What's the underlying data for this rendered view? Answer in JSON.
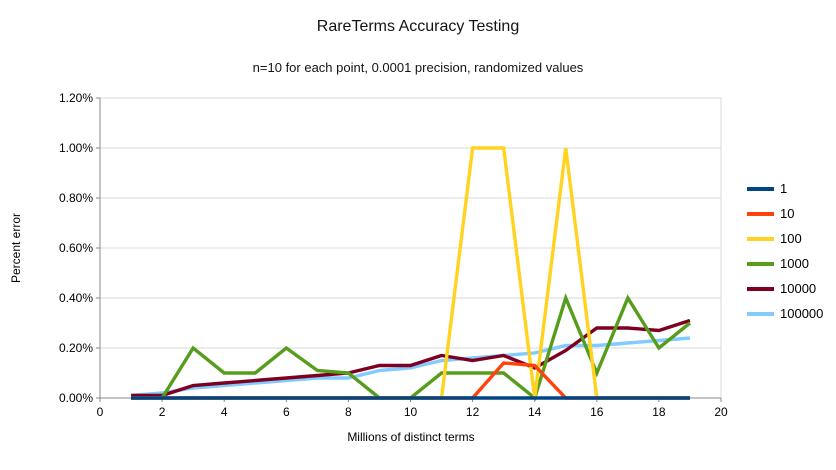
{
  "chart": {
    "title": "RareTerms Accuracy Testing",
    "subtitle": "n=10 for each point, 0.0001 precision, randomized values",
    "xlabel": "Millions of distinct terms",
    "ylabel": "Percent error"
  },
  "chart_data": {
    "type": "line",
    "title": "RareTerms Accuracy Testing",
    "subtitle": "n=10 for each point, 0.0001 precision, randomized values",
    "xlabel": "Millions of distinct terms",
    "ylabel": "Percent error",
    "xlim": [
      0,
      20
    ],
    "ylim": [
      0,
      1.2
    ],
    "x_ticks": [
      0,
      2,
      4,
      6,
      8,
      10,
      12,
      14,
      16,
      18,
      20
    ],
    "y_ticks": [
      0.0,
      0.2,
      0.4,
      0.6,
      0.8,
      1.0,
      1.2
    ],
    "y_tick_labels": [
      "0.00%",
      "0.20%",
      "0.40%",
      "0.60%",
      "0.80%",
      "1.00%",
      "1.20%"
    ],
    "grid": true,
    "legend_position": "right",
    "x": [
      1,
      2,
      3,
      4,
      5,
      6,
      7,
      8,
      9,
      10,
      11,
      12,
      13,
      14,
      15,
      16,
      17,
      18,
      19
    ],
    "series": [
      {
        "name": "1",
        "color": "#004586",
        "values": [
          0,
          0,
          0,
          0,
          0,
          0,
          0,
          0,
          0,
          0,
          0,
          0,
          0,
          0,
          0,
          0,
          0,
          0,
          0
        ]
      },
      {
        "name": "10",
        "color": "#ff420e",
        "values": [
          0,
          0,
          0,
          0,
          0,
          0,
          0,
          0,
          0,
          0,
          0,
          0,
          0.14,
          0.13,
          0,
          0,
          0,
          0,
          0
        ]
      },
      {
        "name": "100",
        "color": "#ffd320",
        "values": [
          0,
          0,
          0,
          0,
          0,
          0,
          0,
          0,
          0,
          0,
          0,
          1.0,
          1.0,
          0,
          1.0,
          0,
          0,
          0,
          0
        ]
      },
      {
        "name": "1000",
        "color": "#579d1c",
        "values": [
          0,
          0,
          0.2,
          0.1,
          0.1,
          0.2,
          0.11,
          0.1,
          0,
          0,
          0.1,
          0.1,
          0.1,
          0,
          0.4,
          0.1,
          0.4,
          0.2,
          0.3
        ]
      },
      {
        "name": "10000",
        "color": "#7e0021",
        "values": [
          0.01,
          0.01,
          0.05,
          0.06,
          0.07,
          0.08,
          0.09,
          0.1,
          0.13,
          0.13,
          0.17,
          0.15,
          0.17,
          0.12,
          0.19,
          0.28,
          0.28,
          0.27,
          0.31
        ]
      },
      {
        "name": "100000",
        "color": "#83caff",
        "values": [
          0.01,
          0.02,
          0.04,
          0.05,
          0.06,
          0.07,
          0.08,
          0.08,
          0.11,
          0.12,
          0.15,
          0.16,
          0.17,
          0.18,
          0.21,
          0.21,
          0.22,
          0.23,
          0.24
        ]
      }
    ]
  },
  "style_colors": {
    "gridline": "#d9d9d9",
    "plot_border": "#d9d9d9",
    "axis": "#8a8a8a",
    "text": "#000000"
  }
}
